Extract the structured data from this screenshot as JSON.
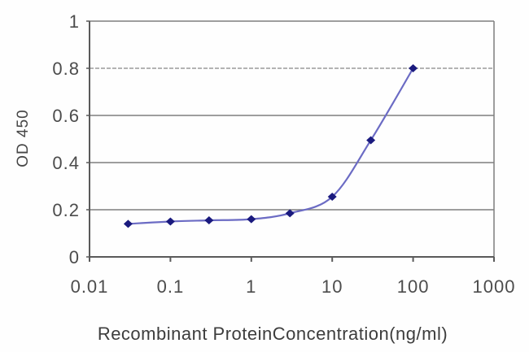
{
  "figure": {
    "background": "#fefefe"
  },
  "chart_data": {
    "type": "line",
    "title": "",
    "xlabel": "Recombinant ProteinConcentration(ng/ml)",
    "ylabel": "OD 450",
    "x_scale": "log",
    "x": [
      0.03,
      0.1,
      0.3,
      1,
      3,
      10,
      30,
      100
    ],
    "y": [
      0.14,
      0.15,
      0.155,
      0.16,
      0.185,
      0.255,
      0.495,
      0.8
    ],
    "x_ticks": [
      0.01,
      0.1,
      1,
      10,
      100,
      1000
    ],
    "x_tick_labels": [
      "0.01",
      "0.1",
      "1",
      "10",
      "100",
      "1000"
    ],
    "y_ticks": [
      0,
      0.2,
      0.4,
      0.6,
      0.8,
      1
    ],
    "y_tick_labels": [
      "0",
      "0.2",
      "0.4",
      "0.6",
      "0.8",
      "1"
    ],
    "xlim": [
      0.01,
      1000
    ],
    "ylim": [
      0,
      1
    ],
    "grid": "horizontal",
    "dashed_gridline_value": 0.8,
    "legend": "none",
    "marker": "diamond",
    "colors": {
      "line": "#6b6bc4",
      "marker": "#1a1a7e",
      "grid": "#7f7f7f",
      "grid_dashed": "#9a9a9a",
      "axis": "#5a5a5a",
      "tick_text": "#4c4c4c",
      "label_text": "#3d3d3d"
    }
  }
}
